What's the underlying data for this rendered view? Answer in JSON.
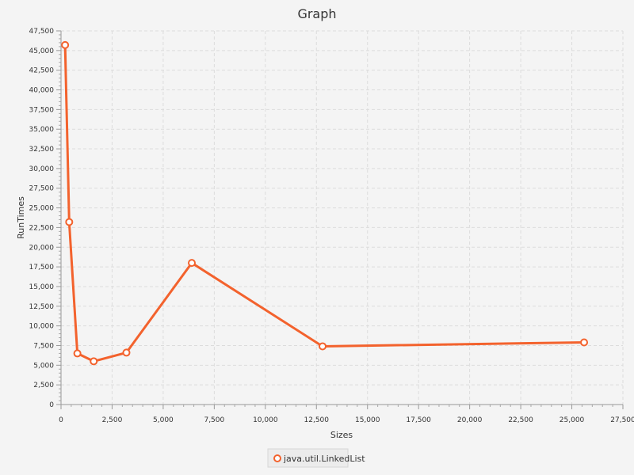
{
  "chart_data": {
    "type": "line",
    "title": "Graph",
    "xlabel": "Sizes",
    "ylabel": "RunTimes",
    "xlim": [
      0,
      27500
    ],
    "ylim": [
      0,
      47500
    ],
    "x_ticks": [
      "0",
      "2,500",
      "5,000",
      "7,500",
      "10,000",
      "12,500",
      "15,000",
      "17,500",
      "20,000",
      "22,500",
      "25,000",
      "27,500"
    ],
    "y_ticks": [
      "0",
      "2,500",
      "5,000",
      "7,500",
      "10,000",
      "12,500",
      "15,000",
      "17,500",
      "20,000",
      "22,500",
      "25,000",
      "27,500",
      "30,000",
      "32,500",
      "35,000",
      "37,500",
      "40,000",
      "42,500",
      "45,000",
      "47,500"
    ],
    "grid": true,
    "legend_position": "bottom",
    "series": [
      {
        "name": "java.util.LinkedList",
        "color": "#f3622d",
        "x": [
          200,
          400,
          800,
          1600,
          3200,
          6400,
          12800,
          25600
        ],
        "y": [
          45700,
          23200,
          6500,
          5500,
          6600,
          18000,
          7400,
          7900
        ]
      }
    ]
  }
}
